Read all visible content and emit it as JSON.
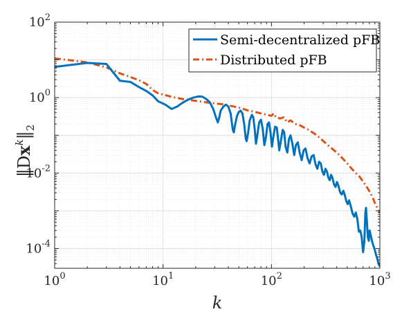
{
  "chart_data": {
    "type": "line",
    "xscale": "log",
    "yscale": "log",
    "xlim": [
      1,
      1000
    ],
    "ylim": [
      3e-05,
      100
    ],
    "xlabel": "k",
    "ylabel": "‖Dx^k‖_2",
    "ylabel_parts": {
      "open": "‖D",
      "bold": "x",
      "sup": "k",
      "close": "‖",
      "sub": "2"
    },
    "grid": true,
    "legend_position": "top-right",
    "x_ticks": [
      {
        "value": 1,
        "base": "10",
        "exp": "0"
      },
      {
        "value": 10,
        "base": "10",
        "exp": "1"
      },
      {
        "value": 100,
        "base": "10",
        "exp": "2"
      },
      {
        "value": 1000,
        "base": "10",
        "exp": "3"
      }
    ],
    "y_ticks": [
      {
        "value": 0.0001,
        "base": "10",
        "exp": "-4"
      },
      {
        "value": 0.01,
        "base": "10",
        "exp": "-2"
      },
      {
        "value": 1,
        "base": "10",
        "exp": "0"
      },
      {
        "value": 100,
        "base": "10",
        "exp": "2"
      }
    ],
    "series": [
      {
        "name": "Semi-decentralized pFB",
        "color": "#0072BD",
        "style": "solid",
        "points": [
          [
            1,
            6.5
          ],
          [
            2,
            8.3
          ],
          [
            3,
            7.8
          ],
          [
            3.5,
            4.5
          ],
          [
            4,
            2.8
          ],
          [
            5,
            2.6
          ],
          [
            6,
            1.9
          ],
          [
            7,
            1.5
          ],
          [
            8,
            1.15
          ],
          [
            9,
            0.8
          ],
          [
            10.5,
            0.65
          ],
          [
            12,
            0.5
          ],
          [
            13.5,
            0.58
          ],
          [
            15,
            0.72
          ],
          [
            17,
            0.88
          ],
          [
            19,
            1.0
          ],
          [
            21,
            1.07
          ],
          [
            23,
            1.06
          ],
          [
            25,
            0.92
          ],
          [
            27,
            0.75
          ],
          [
            29,
            0.5
          ],
          [
            31,
            0.28
          ],
          [
            32,
            0.22
          ],
          [
            33,
            0.3
          ],
          [
            34,
            0.45
          ],
          [
            36,
            0.58
          ],
          [
            38,
            0.65
          ],
          [
            40,
            0.58
          ],
          [
            42,
            0.38
          ],
          [
            44,
            0.14
          ],
          [
            45,
            0.12
          ],
          [
            46,
            0.18
          ],
          [
            48,
            0.32
          ],
          [
            50,
            0.42
          ],
          [
            52,
            0.45
          ],
          [
            54,
            0.38
          ],
          [
            56,
            0.2
          ],
          [
            58,
            0.08
          ],
          [
            59,
            0.07
          ],
          [
            61,
            0.12
          ],
          [
            63,
            0.25
          ],
          [
            66,
            0.35
          ],
          [
            68,
            0.3
          ],
          [
            70,
            0.15
          ],
          [
            72,
            0.06
          ],
          [
            74,
            0.1
          ],
          [
            77,
            0.22
          ],
          [
            80,
            0.26
          ],
          [
            83,
            0.15
          ],
          [
            86,
            0.055
          ],
          [
            89,
            0.09
          ],
          [
            92,
            0.2
          ],
          [
            95,
            0.22
          ],
          [
            98,
            0.12
          ],
          [
            101,
            0.05
          ],
          [
            104,
            0.09
          ],
          [
            108,
            0.17
          ],
          [
            112,
            0.16
          ],
          [
            115,
            0.08
          ],
          [
            118,
            0.04
          ],
          [
            122,
            0.07
          ],
          [
            127,
            0.14
          ],
          [
            131,
            0.12
          ],
          [
            135,
            0.05
          ],
          [
            140,
            0.035
          ],
          [
            145,
            0.08
          ],
          [
            150,
            0.1
          ],
          [
            156,
            0.06
          ],
          [
            162,
            0.03
          ],
          [
            168,
            0.055
          ],
          [
            175,
            0.065
          ],
          [
            182,
            0.035
          ],
          [
            190,
            0.022
          ],
          [
            198,
            0.04
          ],
          [
            206,
            0.045
          ],
          [
            215,
            0.025
          ],
          [
            225,
            0.018
          ],
          [
            235,
            0.028
          ],
          [
            245,
            0.03
          ],
          [
            255,
            0.017
          ],
          [
            265,
            0.013
          ],
          [
            275,
            0.02
          ],
          [
            285,
            0.018
          ],
          [
            295,
            0.011
          ],
          [
            305,
            0.009
          ],
          [
            315,
            0.013
          ],
          [
            325,
            0.011
          ],
          [
            335,
            0.0075
          ],
          [
            345,
            0.0065
          ],
          [
            355,
            0.009
          ],
          [
            365,
            0.0075
          ],
          [
            378,
            0.005
          ],
          [
            390,
            0.0043
          ],
          [
            402,
            0.0058
          ],
          [
            415,
            0.0046
          ],
          [
            430,
            0.0031
          ],
          [
            445,
            0.0027
          ],
          [
            460,
            0.0034
          ],
          [
            475,
            0.0026
          ],
          [
            490,
            0.0018
          ],
          [
            505,
            0.0015
          ],
          [
            520,
            0.0019
          ],
          [
            540,
            0.0013
          ],
          [
            560,
            0.00085
          ],
          [
            580,
            0.0007
          ],
          [
            600,
            0.0009
          ],
          [
            620,
            0.0006
          ],
          [
            640,
            0.00028
          ],
          [
            660,
            0.0003
          ],
          [
            680,
            0.0002
          ],
          [
            700,
            8e-05
          ],
          [
            720,
            0.00016
          ],
          [
            735,
            0.0009
          ],
          [
            745,
            0.0012
          ],
          [
            760,
            0.0005
          ],
          [
            775,
            0.0002
          ],
          [
            790,
            0.00016
          ],
          [
            805,
            0.0003
          ],
          [
            825,
            0.00022
          ],
          [
            845,
            0.00016
          ],
          [
            870,
            0.00012
          ],
          [
            895,
            9.5e-05
          ],
          [
            920,
            7e-05
          ],
          [
            945,
            5.5e-05
          ],
          [
            970,
            4e-05
          ],
          [
            990,
            3.5e-05
          ],
          [
            1000,
            4e-05
          ]
        ]
      },
      {
        "name": "Distributed pFB",
        "color": "#D95319",
        "style": "dashdot",
        "points": [
          [
            1,
            11
          ],
          [
            1.5,
            9.5
          ],
          [
            2,
            8.6
          ],
          [
            3,
            6.3
          ],
          [
            4,
            4.4
          ],
          [
            5,
            3.5
          ],
          [
            6,
            2.9
          ],
          [
            7,
            2.3
          ],
          [
            8,
            1.6
          ],
          [
            9,
            1.3
          ],
          [
            10,
            1.2
          ],
          [
            12,
            1.05
          ],
          [
            15,
            0.92
          ],
          [
            20,
            0.82
          ],
          [
            25,
            0.75
          ],
          [
            30,
            0.7
          ],
          [
            35,
            0.67
          ],
          [
            40,
            0.62
          ],
          [
            45,
            0.58
          ],
          [
            50,
            0.54
          ],
          [
            55,
            0.5
          ],
          [
            60,
            0.46
          ],
          [
            65,
            0.44
          ],
          [
            70,
            0.42
          ],
          [
            80,
            0.38
          ],
          [
            90,
            0.35
          ],
          [
            100,
            0.33
          ],
          [
            105,
            0.38
          ],
          [
            110,
            0.3
          ],
          [
            120,
            0.28
          ],
          [
            130,
            0.3
          ],
          [
            140,
            0.22
          ],
          [
            150,
            0.25
          ],
          [
            165,
            0.2
          ],
          [
            180,
            0.19
          ],
          [
            200,
            0.16
          ],
          [
            220,
            0.14
          ],
          [
            250,
            0.11
          ],
          [
            280,
            0.085
          ],
          [
            320,
            0.06
          ],
          [
            360,
            0.045
          ],
          [
            400,
            0.035
          ],
          [
            450,
            0.025
          ],
          [
            500,
            0.018
          ],
          [
            550,
            0.013
          ],
          [
            600,
            0.01
          ],
          [
            650,
            0.008
          ],
          [
            700,
            0.006
          ],
          [
            750,
            0.0045
          ],
          [
            800,
            0.0033
          ],
          [
            850,
            0.0024
          ],
          [
            900,
            0.0016
          ],
          [
            950,
            0.0012
          ],
          [
            1000,
            0.0009
          ]
        ]
      }
    ]
  }
}
